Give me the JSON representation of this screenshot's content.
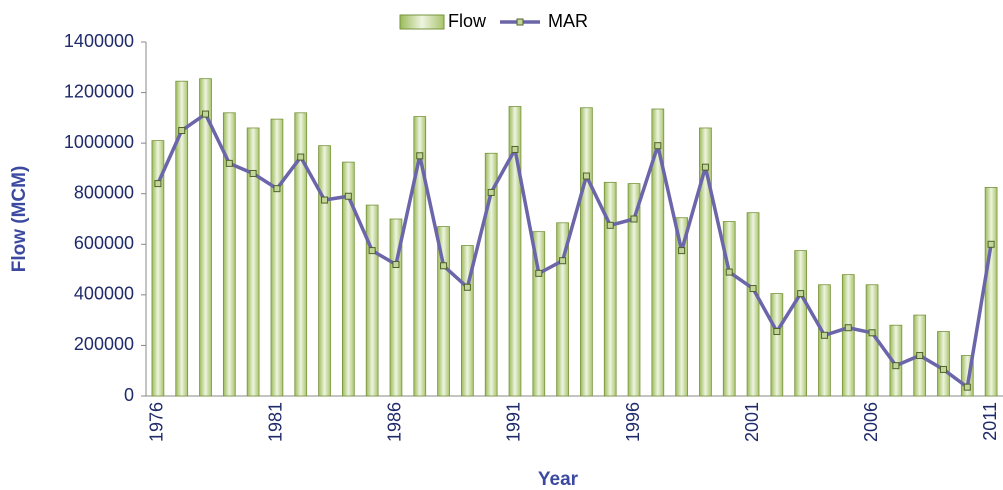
{
  "chart_data": {
    "type": "bar-line",
    "x_label": "Year",
    "y_label": "Flow (MCM)",
    "categories": [
      "1976",
      null,
      null,
      null,
      null,
      "1981",
      null,
      null,
      null,
      null,
      "1986",
      null,
      null,
      null,
      null,
      "1991",
      null,
      null,
      null,
      null,
      "1996",
      null,
      null,
      null,
      null,
      "2001",
      null,
      null,
      null,
      null,
      "2006",
      null,
      null,
      null,
      null,
      "2011"
    ],
    "series": [
      {
        "name": "Flow",
        "type": "bar",
        "color": "#c3d69b",
        "values": [
          1010000,
          1245000,
          1255000,
          1120000,
          1060000,
          1095000,
          1120000,
          990000,
          925000,
          755000,
          700000,
          1105000,
          670000,
          595000,
          960000,
          1145000,
          650000,
          685000,
          1140000,
          845000,
          840000,
          1135000,
          705000,
          1060000,
          690000,
          725000,
          405000,
          575000,
          440000,
          480000,
          440000,
          280000,
          320000,
          255000,
          160000,
          825000
        ]
      },
      {
        "name": "MAR",
        "type": "line",
        "color": "#6b65a9",
        "values": [
          840000,
          1050000,
          1115000,
          920000,
          880000,
          820000,
          945000,
          775000,
          790000,
          575000,
          520000,
          950000,
          515000,
          430000,
          805000,
          975000,
          485000,
          535000,
          870000,
          675000,
          700000,
          990000,
          575000,
          905000,
          490000,
          425000,
          255000,
          405000,
          240000,
          270000,
          250000,
          120000,
          160000,
          105000,
          35000,
          600000
        ]
      }
    ],
    "ylim": [
      0,
      1400000
    ],
    "yticks": [
      0,
      200000,
      400000,
      600000,
      800000,
      1000000,
      1200000,
      1400000
    ],
    "grid": false,
    "legend": "top"
  }
}
